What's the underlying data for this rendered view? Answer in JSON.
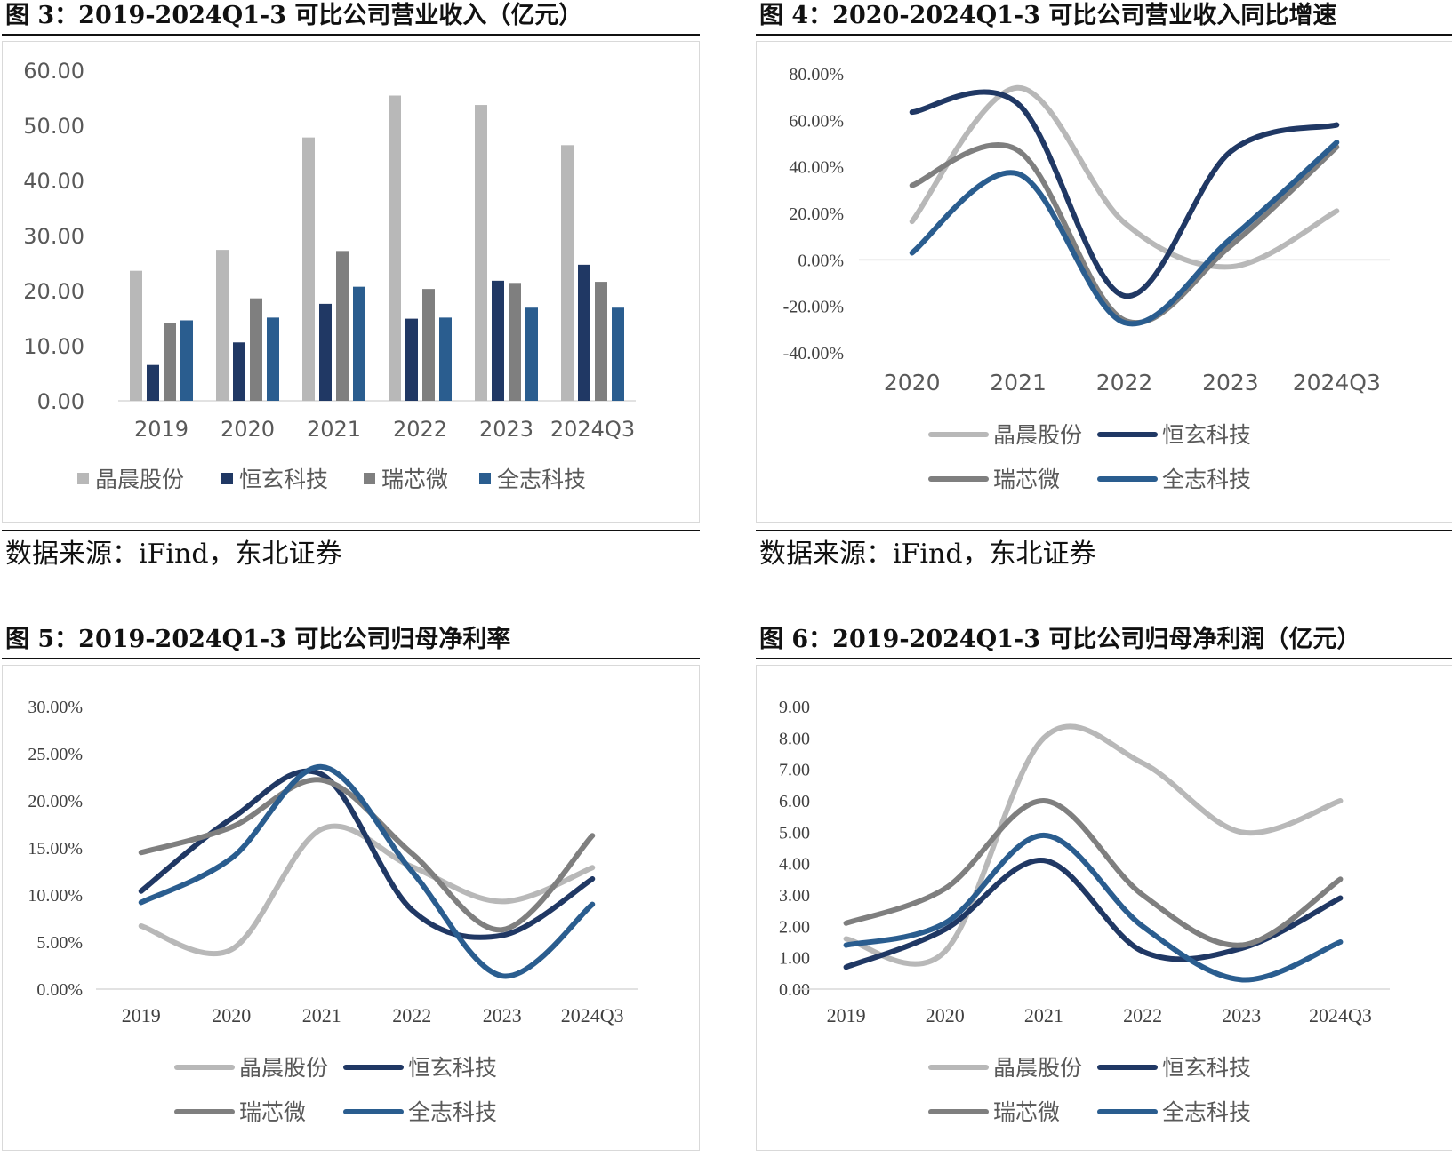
{
  "colors": {
    "jingchen": "#b8b8b8",
    "hengxuan": "#203864",
    "ruixinwei": "#7f7f7f",
    "quanzhi": "#2a5d8f"
  },
  "series_names": [
    "晶晨股份",
    "恒玄科技",
    "瑞芯微",
    "全志科技"
  ],
  "source_text": "数据来源：iFind，东北证券",
  "charts": [
    {
      "id": "fig3",
      "title": "图  3：2019-2024Q1-3 可比公司营业收入（亿元）",
      "chart_data": {
        "type": "bar",
        "categories": [
          "2019",
          "2020",
          "2021",
          "2022",
          "2023",
          "2024Q3"
        ],
        "yticks": [
          "0.00",
          "10.00",
          "20.00",
          "30.00",
          "40.00",
          "50.00",
          "60.00"
        ],
        "ylim": [
          0,
          60
        ],
        "legend": "bottom",
        "series": [
          {
            "name": "晶晨股份",
            "values": [
              23.6,
              27.4,
              47.8,
              55.4,
              53.7,
              46.4
            ]
          },
          {
            "name": "恒玄科技",
            "values": [
              6.5,
              10.6,
              17.6,
              14.9,
              21.8,
              24.7
            ]
          },
          {
            "name": "瑞芯微",
            "values": [
              14.1,
              18.6,
              27.2,
              20.3,
              21.4,
              21.6
            ]
          },
          {
            "name": "全志科技",
            "values": [
              14.6,
              15.1,
              20.7,
              15.1,
              16.9,
              16.9
            ]
          }
        ]
      }
    },
    {
      "id": "fig4",
      "title": "图  4：2020-2024Q1-3 可比公司营业收入同比增速",
      "chart_data": {
        "type": "line",
        "categories": [
          "2020",
          "2021",
          "2022",
          "2023",
          "2024Q3"
        ],
        "yticks": [
          "-40.00%",
          "-20.00%",
          "0.00%",
          "20.00%",
          "40.00%",
          "60.00%",
          "80.00%"
        ],
        "ylim": [
          -40,
          80
        ],
        "legend": "bottom",
        "series": [
          {
            "name": "晶晨股份",
            "values": [
              16.5,
              74.0,
              16.0,
              -3.0,
              21.0
            ]
          },
          {
            "name": "恒玄科技",
            "values": [
              63.5,
              67.0,
              -15.5,
              46.5,
              58.0
            ]
          },
          {
            "name": "瑞芯微",
            "values": [
              32.0,
              47.0,
              -26.0,
              6.0,
              48.5
            ]
          },
          {
            "name": "全志科技",
            "values": [
              3.0,
              37.0,
              -27.0,
              9.0,
              50.5
            ]
          }
        ]
      }
    },
    {
      "id": "fig5",
      "title": "图  5：2019-2024Q1-3 可比公司归母净利率",
      "chart_data": {
        "type": "line",
        "categories": [
          "2019",
          "2020",
          "2021",
          "2022",
          "2023",
          "2024Q3"
        ],
        "yticks": [
          "0.00%",
          "5.00%",
          "10.00%",
          "15.00%",
          "20.00%",
          "25.00%",
          "30.00%"
        ],
        "ylim": [
          0,
          30
        ],
        "legend": "bottom",
        "series": [
          {
            "name": "晶晨股份",
            "values": [
              6.7,
              4.2,
              17.0,
              13.0,
              9.3,
              12.9
            ]
          },
          {
            "name": "恒玄科技",
            "values": [
              10.4,
              18.1,
              22.8,
              8.4,
              5.7,
              11.7
            ]
          },
          {
            "name": "瑞芯微",
            "values": [
              14.5,
              17.2,
              22.2,
              14.4,
              6.3,
              16.3
            ]
          },
          {
            "name": "全志科技",
            "values": [
              9.2,
              13.9,
              23.6,
              12.5,
              1.4,
              9.0
            ]
          }
        ]
      }
    },
    {
      "id": "fig6",
      "title": "图  6：2019-2024Q1-3 可比公司归母净利润（亿元）",
      "chart_data": {
        "type": "line",
        "categories": [
          "2019",
          "2020",
          "2021",
          "2022",
          "2023",
          "2024Q3"
        ],
        "yticks": [
          "0.00",
          "1.00",
          "2.00",
          "3.00",
          "4.00",
          "5.00",
          "6.00",
          "7.00",
          "8.00",
          "9.00"
        ],
        "ylim": [
          0,
          9
        ],
        "legend": "bottom",
        "series": [
          {
            "name": "晶晨股份",
            "values": [
              1.6,
              1.2,
              8.0,
              7.2,
              5.0,
              6.0
            ]
          },
          {
            "name": "恒玄科技",
            "values": [
              0.7,
              1.9,
              4.1,
              1.2,
              1.3,
              2.9
            ]
          },
          {
            "name": "瑞芯微",
            "values": [
              2.1,
              3.2,
              6.0,
              3.0,
              1.4,
              3.5
            ]
          },
          {
            "name": "全志科技",
            "values": [
              1.4,
              2.1,
              4.9,
              2.0,
              0.3,
              1.5
            ]
          }
        ]
      }
    }
  ]
}
